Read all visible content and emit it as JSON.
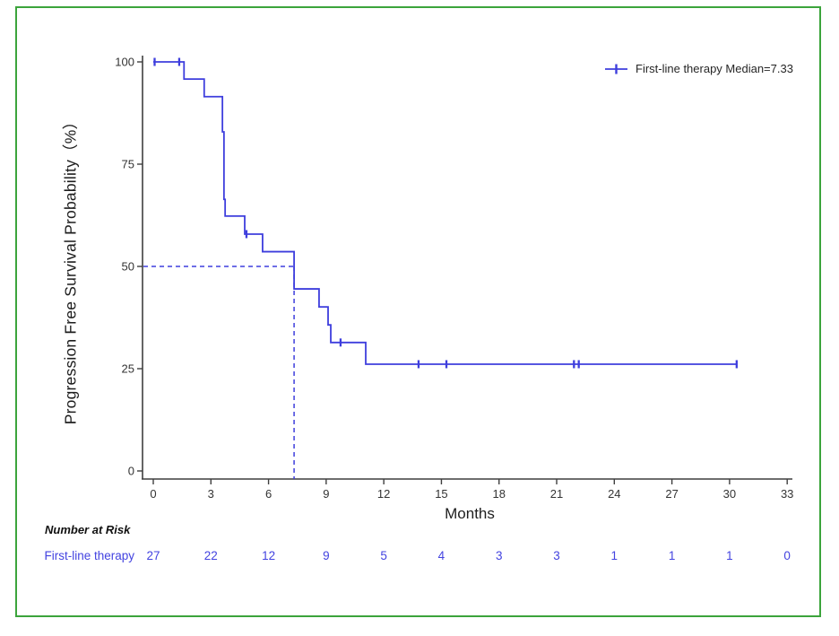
{
  "colors": {
    "curve": "#3e3edd",
    "risk_text": "#4343e0",
    "frame_border": "#3ca43c",
    "axis": "#3f3f3f",
    "tick_label": "#333333"
  },
  "legend": {
    "label": "First-line therapy Median=7.33"
  },
  "axes": {
    "x_title": "Months",
    "y_title": "Progression Free Survival Probability（%）"
  },
  "risk": {
    "header": "Number at Risk",
    "row_label": "First-line therapy"
  },
  "chart_data": {
    "type": "line",
    "subtype": "kaplan-meier-step",
    "title": "",
    "xlabel": "Months",
    "ylabel": "Progression Free Survival Probability（%）",
    "xlim": [
      0,
      33
    ],
    "xticks": [
      0,
      3,
      6,
      9,
      12,
      15,
      18,
      21,
      24,
      27,
      30,
      33
    ],
    "ylim": [
      0,
      100
    ],
    "yticks": [
      0,
      25,
      50,
      75,
      100
    ],
    "grid": false,
    "legend_position": "top-right",
    "series": [
      {
        "name": "First-line therapy",
        "legend_label": "First-line therapy Median=7.33",
        "median": 7.33,
        "median_reference_probability": 50,
        "steps": [
          [
            0,
            100
          ],
          [
            1.6,
            95.8
          ],
          [
            2.65,
            91.5
          ],
          [
            3.6,
            82.9
          ],
          [
            3.68,
            66.4
          ],
          [
            3.74,
            62.3
          ],
          [
            4.76,
            57.9
          ],
          [
            5.69,
            53.6
          ],
          [
            7.33,
            44.5
          ],
          [
            8.63,
            40.1
          ],
          [
            9.1,
            35.7
          ],
          [
            9.24,
            31.4
          ],
          [
            11.06,
            26.1
          ]
        ],
        "end_month": 30.37,
        "censor_marks": [
          [
            0.07,
            100
          ],
          [
            1.35,
            100
          ],
          [
            4.85,
            57.9
          ],
          [
            9.75,
            31.4
          ],
          [
            13.81,
            26.1
          ],
          [
            15.26,
            26.1
          ],
          [
            21.9,
            26.1
          ],
          [
            22.15,
            26.1
          ],
          [
            30.37,
            26.1
          ]
        ]
      }
    ],
    "risk_table": {
      "header": "Number at Risk",
      "months": [
        0,
        3,
        6,
        9,
        12,
        15,
        18,
        21,
        24,
        27,
        30,
        33
      ],
      "rows": [
        {
          "label": "First-line therapy",
          "values": [
            27,
            22,
            12,
            9,
            5,
            4,
            3,
            3,
            1,
            1,
            1,
            0
          ]
        }
      ]
    }
  }
}
